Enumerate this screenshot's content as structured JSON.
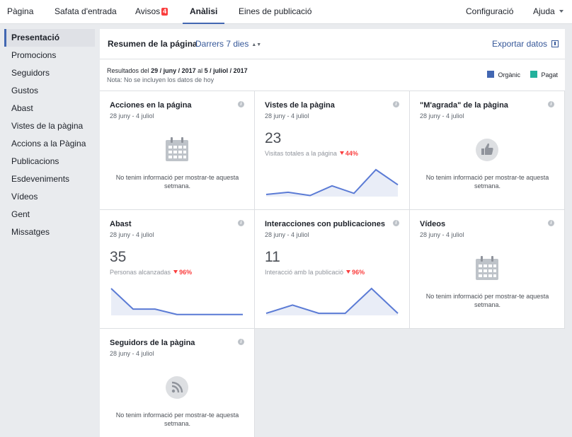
{
  "topnav": {
    "items": [
      {
        "label": "Pàgina"
      },
      {
        "label": "Safata d'entrada"
      },
      {
        "label": "Avisos",
        "badge": "4"
      },
      {
        "label": "Anàlisi"
      },
      {
        "label": "Eines de publicació"
      }
    ],
    "settings_label": "Configuració",
    "help_label": "Ajuda"
  },
  "sidebar": {
    "items": [
      {
        "label": "Presentació"
      },
      {
        "label": "Promocions"
      },
      {
        "label": "Seguidors"
      },
      {
        "label": "Gustos"
      },
      {
        "label": "Abast"
      },
      {
        "label": "Vistes de la pàgina"
      },
      {
        "label": "Accions a la Pàgina"
      },
      {
        "label": "Publicacions"
      },
      {
        "label": "Esdeveniments"
      },
      {
        "label": "Vídeos"
      },
      {
        "label": "Gent"
      },
      {
        "label": "Missatges"
      }
    ]
  },
  "summary": {
    "title": "Resumen de la página",
    "range": "Darrers 7 dies",
    "export_label": "Exportar datos",
    "results_prefix": "Resultados del",
    "date_start": "29 / juny / 2017",
    "results_mid": "al",
    "date_end": "5 / juliol / 2017",
    "note": "Nota: No se incluyen los datos de hoy",
    "legend": [
      {
        "label": "Orgànic",
        "color": "#4267b2"
      },
      {
        "label": "Pagat",
        "color": "#23b19c"
      }
    ]
  },
  "cards": [
    {
      "title": "Acciones en la página",
      "date": "28 juny - 4 juliol",
      "empty": "No tenim informació per mostrar-te aquesta setmana.",
      "icon": "calendar-icon"
    },
    {
      "title": "Vistes de la pàgina",
      "date": "28 juny - 4 juliol",
      "value": "23",
      "label": "Visitas totales a la página",
      "change": "44%",
      "spark": [
        2,
        4,
        1,
        10,
        3,
        25,
        11
      ]
    },
    {
      "title": "\"M'agrada\" de la pàgina",
      "date": "28 juny - 4 juliol",
      "empty": "No tenim informació per mostrar-te aquesta setmana.",
      "icon": "thumbs-up-icon"
    },
    {
      "title": "Abast",
      "date": "28 juny - 4 juliol",
      "value": "35",
      "label": "Personas alcanzadas",
      "change": "96%",
      "spark": [
        30,
        7,
        7,
        1,
        1,
        1,
        1
      ]
    },
    {
      "title": "Interacciones con publicaciones",
      "date": "28 juny - 4 juliol",
      "value": "11",
      "label": "Interacció amb la publicació",
      "change": "96%",
      "spark": [
        1,
        5,
        1,
        1,
        13,
        1
      ]
    },
    {
      "title": "Vídeos",
      "date": "28 juny - 4 juliol",
      "empty": "No tenim informació per mostrar-te aquesta setmana.",
      "icon": "calendar-icon"
    },
    {
      "title": "Seguidors de la pàgina",
      "date": "28 juny - 4 juliol",
      "empty": "No tenim informació per mostrar-te aquesta setmana.",
      "icon": "rss-icon"
    }
  ]
}
